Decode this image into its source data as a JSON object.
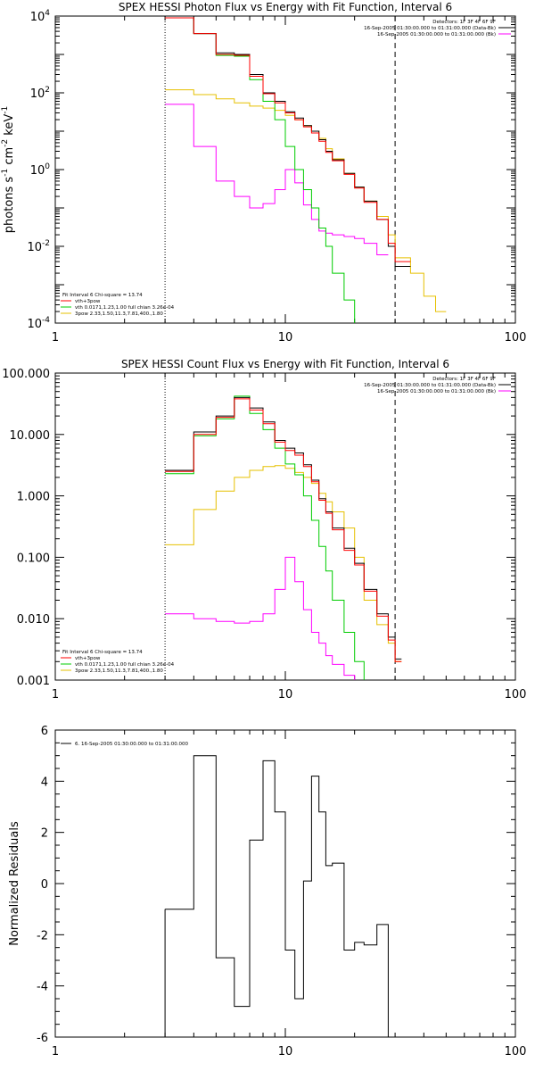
{
  "colors": {
    "total": "#000000",
    "fit": "#ff0000",
    "vth": "#00cc00",
    "bpow": "#e6c000",
    "bk": "#ff00ff",
    "dashed": "#000000"
  },
  "chart_data": [
    {
      "type": "line",
      "title": "SPEX HESSI Photon Flux vs Energy with Fit Function, Interval 6",
      "ylabel_parts": [
        "photons s",
        "-1",
        " cm",
        "-2",
        " keV",
        "-1"
      ],
      "xlabel": "",
      "x_scale": "log",
      "y_scale": "log",
      "xlim": [
        1,
        100
      ],
      "ylim": [
        0.0001,
        10000
      ],
      "x_ticks": [
        "1",
        "10",
        "100"
      ],
      "y_ticks": [
        {
          "base": "10",
          "exp": "-4"
        },
        {
          "base": "10",
          "exp": "-2"
        },
        {
          "base": "10",
          "exp": "0"
        },
        {
          "base": "10",
          "exp": "2"
        },
        {
          "base": "10",
          "exp": "4"
        }
      ],
      "lo_line_keV": 3,
      "hi_line_keV": 30,
      "legend_top": [
        "Detectors: 1F 3F 4F 6F 9F",
        "16-Sep-2005 01:30:00.000 to 01:31:00.000 (Data-Bk)",
        "16-Sep-2005 01:30:00.000 to 01:31:00.000 (Bk)"
      ],
      "legend_bottom": [
        "Fit Interval 6   Chi-square = 13.74",
        "vth+3pow",
        "vth 0.0171,1.23,1.00  full chian 3.26e-04",
        "3pow 2.33,1.50,11.3,7.81,400.,1.80"
      ],
      "bin_edges": [
        3,
        4,
        5,
        6,
        7,
        8,
        9,
        10,
        11,
        12,
        13,
        14,
        15,
        16,
        18,
        20,
        22,
        25,
        28,
        30,
        35,
        40,
        45,
        50
      ],
      "series": [
        {
          "key": "total",
          "values": [
            9000,
            3500,
            1100,
            1000,
            300,
            100,
            60,
            32,
            22,
            14,
            10,
            6,
            3,
            1.8,
            0.8,
            0.35,
            0.15,
            0.05,
            0.01,
            0.003,
            null,
            null,
            null
          ]
        },
        {
          "key": "fit",
          "values": [
            9000,
            3500,
            1000,
            950,
            270,
            95,
            55,
            30,
            20,
            13,
            9,
            5.5,
            2.8,
            1.7,
            0.75,
            0.33,
            0.14,
            0.05,
            0.012,
            0.004,
            null,
            null,
            null
          ]
        },
        {
          "key": "vth",
          "values": [
            9000,
            3500,
            950,
            900,
            220,
            60,
            20,
            4,
            1,
            0.3,
            0.1,
            0.03,
            0.01,
            0.002,
            0.0004,
            7e-05,
            null,
            null,
            null,
            null,
            null,
            null,
            null
          ]
        },
        {
          "key": "bpow",
          "values": [
            120,
            90,
            70,
            55,
            45,
            40,
            35,
            26,
            20,
            14,
            10,
            6.5,
            3.5,
            1.9,
            0.8,
            0.35,
            0.15,
            0.06,
            0.02,
            0.005,
            0.002,
            0.0005,
            0.0002
          ]
        },
        {
          "key": "bk",
          "values": [
            50,
            4,
            0.5,
            0.2,
            0.1,
            0.13,
            0.3,
            1.0,
            0.45,
            0.12,
            0.05,
            0.025,
            0.022,
            0.02,
            0.018,
            0.016,
            0.012,
            0.006,
            null,
            null,
            null,
            null,
            null
          ]
        }
      ]
    },
    {
      "type": "line",
      "title": "SPEX HESSI Count Flux vs Energy with Fit Function, Interval 6",
      "xlabel": "",
      "x_scale": "log",
      "y_scale": "log",
      "xlim": [
        1,
        100
      ],
      "ylim": [
        0.001,
        100
      ],
      "x_ticks": [
        "1",
        "10",
        "100"
      ],
      "y_ticks": [
        "0.001",
        "0.010",
        "0.100",
        "1.000",
        "10.000",
        "100.000"
      ],
      "lo_line_keV": 3,
      "hi_line_keV": 30,
      "legend_top": [
        "Detectors: 1F 3F 4F 6F 9F",
        "16-Sep-2005 01:30:00.000 to 01:31:00.000 (Data-Bk)",
        "16-Sep-2005 01:30:00.000 to 01:31:00.000 (Bk)"
      ],
      "legend_bottom": [
        "Fit Interval 6   Chi-square = 13.74",
        "vth+3pow",
        "vth 0.0171,1.23,1.00  full chian 3.26e-04",
        "3pow 2.33,1.50,11.3,7.81,400.,1.80"
      ],
      "bin_edges": [
        3,
        4,
        5,
        6,
        7,
        8,
        9,
        10,
        11,
        12,
        13,
        14,
        15,
        16,
        18,
        20,
        22,
        25,
        28,
        30,
        32
      ],
      "series": [
        {
          "key": "total",
          "values": [
            2.6,
            11,
            20,
            40,
            27,
            16,
            8,
            6,
            5,
            3.2,
            1.8,
            0.9,
            0.55,
            0.3,
            0.14,
            0.08,
            0.03,
            0.012,
            0.005,
            0.0022
          ]
        },
        {
          "key": "fit",
          "values": [
            2.5,
            10,
            19,
            38,
            25,
            15,
            7.5,
            5.5,
            4.6,
            3.0,
            1.7,
            0.85,
            0.52,
            0.28,
            0.13,
            0.075,
            0.028,
            0.011,
            0.0045,
            0.002
          ]
        },
        {
          "key": "vth",
          "values": [
            2.3,
            9.5,
            18,
            42,
            22,
            12,
            6,
            3.3,
            2.2,
            1.0,
            0.4,
            0.15,
            0.06,
            0.02,
            0.006,
            0.002,
            0.0008,
            null,
            null,
            null
          ]
        },
        {
          "key": "bpow",
          "values": [
            0.16,
            0.6,
            1.2,
            2.0,
            2.6,
            3.0,
            3.1,
            2.8,
            2.4,
            2.0,
            1.6,
            1.1,
            0.8,
            0.55,
            0.3,
            0.1,
            0.02,
            0.008,
            0.004,
            0.002
          ]
        },
        {
          "key": "bk",
          "values": [
            0.012,
            0.01,
            0.009,
            0.0085,
            0.009,
            0.012,
            0.03,
            0.1,
            0.04,
            0.014,
            0.006,
            0.004,
            0.0025,
            0.0018,
            0.0012,
            0.0007,
            null,
            null,
            null,
            null
          ]
        }
      ]
    },
    {
      "type": "line",
      "title": "",
      "ylabel": "Normalized Residuals",
      "xlabel": "",
      "x_scale": "log",
      "y_scale": "linear",
      "xlim": [
        1,
        100
      ],
      "ylim": [
        -6,
        6
      ],
      "x_ticks": [
        "1",
        "10",
        "100"
      ],
      "y_ticks": [
        "-6",
        "-4",
        "-2",
        "0",
        "2",
        "4",
        "6"
      ],
      "legend": "6. 16-Sep-2005 01:30:00.000 to 01:31:00.000",
      "bin_edges": [
        3,
        4,
        5,
        6,
        7,
        8,
        9,
        10,
        11,
        12,
        13,
        14,
        15,
        16,
        18,
        20,
        22,
        25,
        28,
        30
      ],
      "series": [
        {
          "key": "total",
          "values": [
            -1.0,
            5.0,
            -2.9,
            -4.8,
            1.7,
            4.8,
            2.8,
            -2.6,
            -4.5,
            0.1,
            4.2,
            2.8,
            0.7,
            0.8,
            -2.6,
            -2.3,
            -2.4,
            -1.6,
            -6.0
          ]
        }
      ]
    }
  ]
}
